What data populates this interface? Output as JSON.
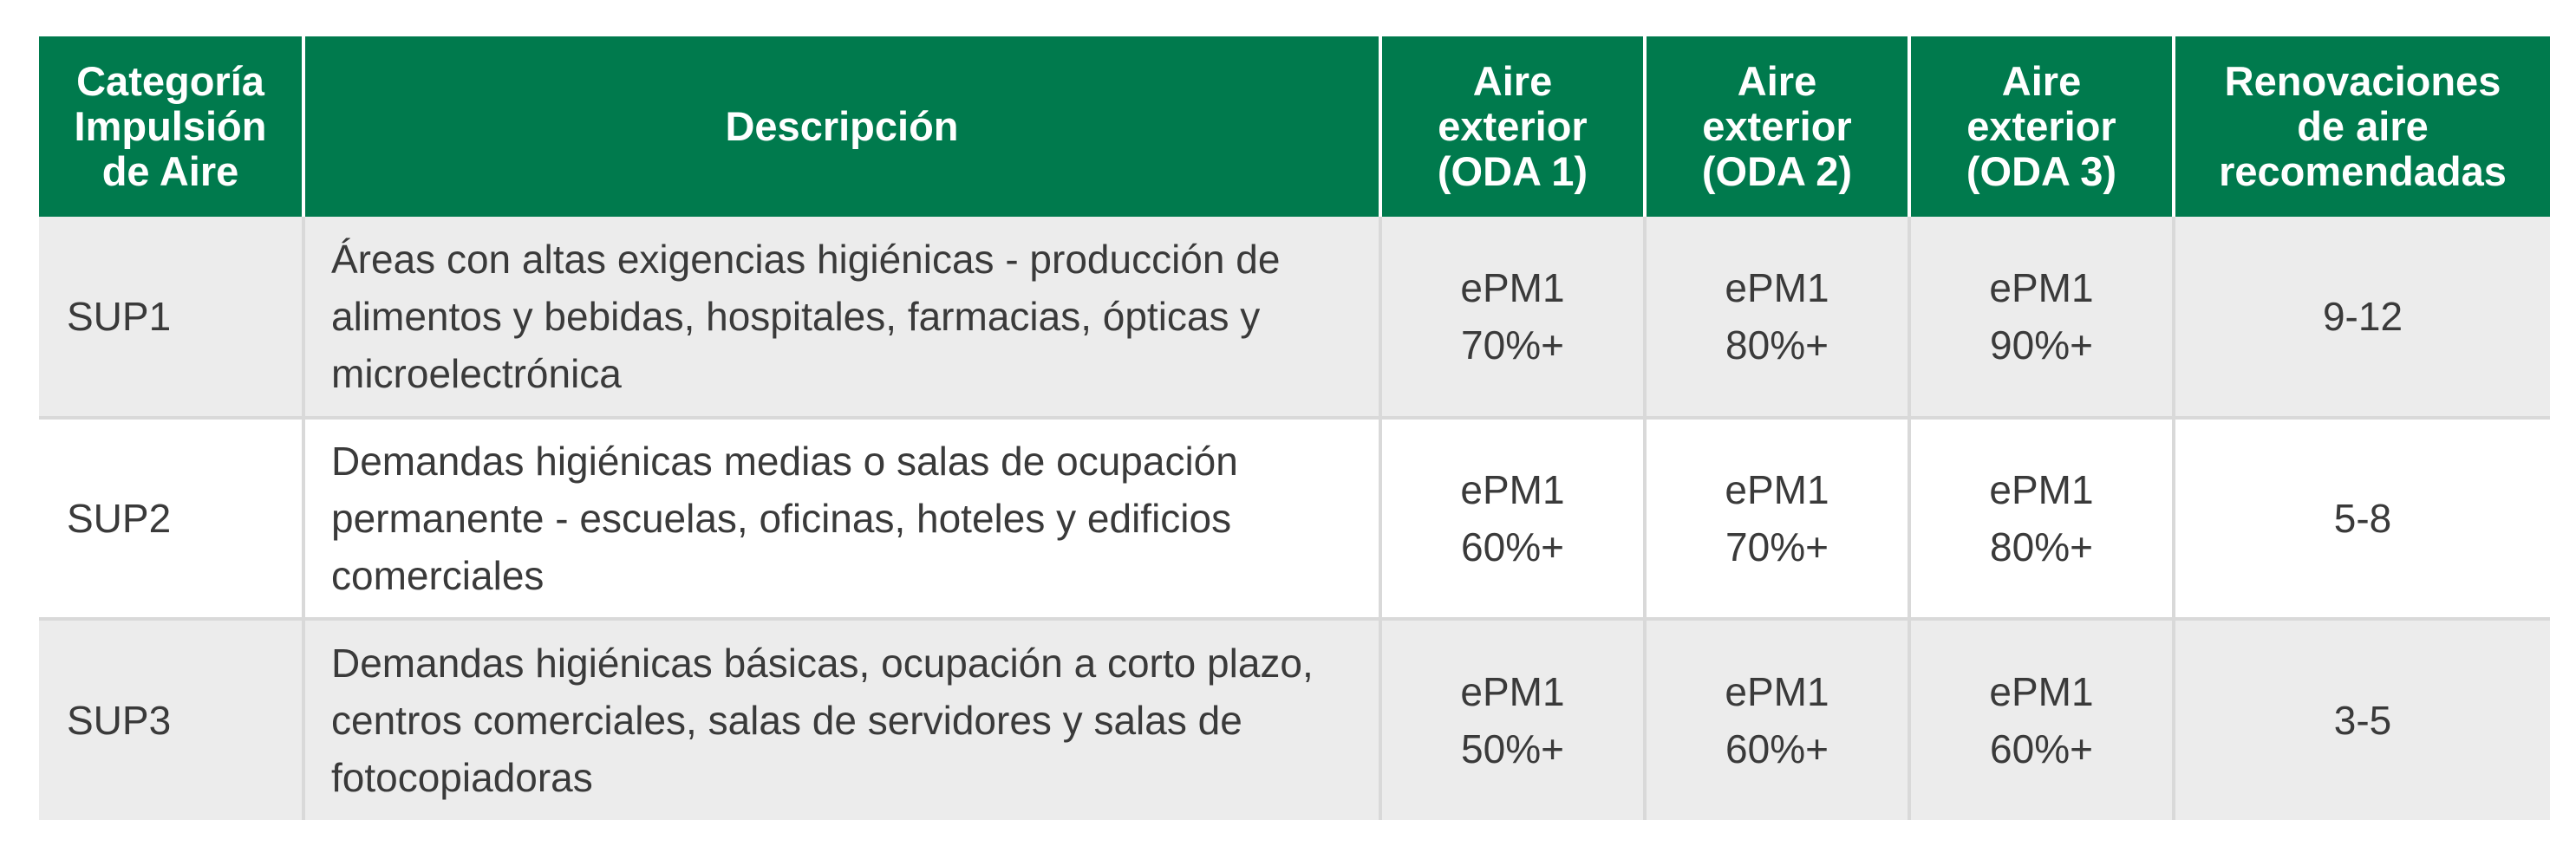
{
  "table": {
    "headers": [
      [
        "Categoría",
        "Impulsión",
        "de Aire"
      ],
      [
        "Descripción"
      ],
      [
        "Aire",
        "exterior",
        "(ODA 1)"
      ],
      [
        "Aire",
        "exterior",
        "(ODA 2)"
      ],
      [
        "Aire",
        "exterior",
        "(ODA 3)"
      ],
      [
        "Renovaciones",
        "de aire",
        "recomendadas"
      ]
    ],
    "rows": [
      {
        "category": "SUP1",
        "description": [
          "Áreas con altas exigencias higiénicas - producción de",
          "alimentos y bebidas, hospitales, farmacias, ópticas y",
          "microelectrónica"
        ],
        "oda1": [
          "ePM1",
          "70%+"
        ],
        "oda2": [
          "ePM1",
          "80%+"
        ],
        "oda3": [
          "ePM1",
          "90%+"
        ],
        "renovaciones": "9-12"
      },
      {
        "category": "SUP2",
        "description": [
          "Demandas higiénicas medias o salas de ocupación",
          "permanente - escuelas, oficinas, hoteles y edificios",
          "comerciales"
        ],
        "oda1": [
          "ePM1",
          "60%+"
        ],
        "oda2": [
          "ePM1",
          "70%+"
        ],
        "oda3": [
          "ePM1",
          "80%+"
        ],
        "renovaciones": "5-8"
      },
      {
        "category": "SUP3",
        "description": [
          "Demandas higiénicas básicas, ocupación a corto plazo,",
          "centros comerciales, salas de servidores y salas de",
          "fotocopiadoras"
        ],
        "oda1": [
          "ePM1",
          "50%+"
        ],
        "oda2": [
          "ePM1",
          "60%+"
        ],
        "oda3": [
          "ePM1",
          "60%+"
        ],
        "renovaciones": "3-5"
      }
    ]
  },
  "colors": {
    "header_bg": "#007a4d",
    "header_text": "#ffffff",
    "row_shaded": "#ececec",
    "row_plain": "#ffffff",
    "grid": "#d9d9d9",
    "body_text": "#3a3a3a"
  }
}
